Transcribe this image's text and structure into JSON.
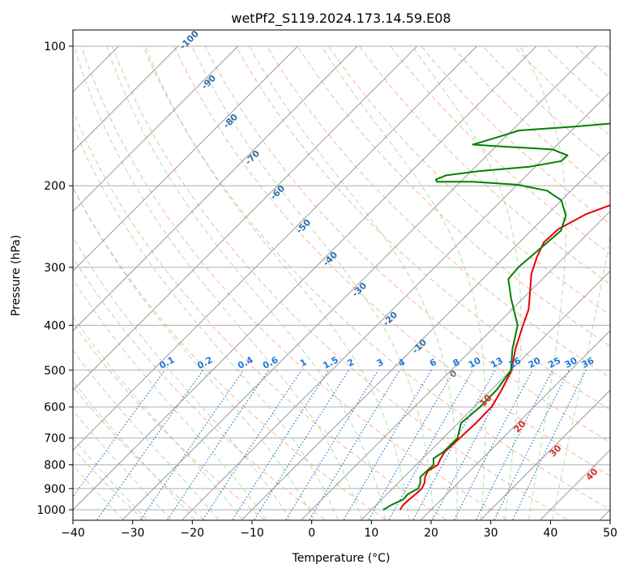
{
  "chart_data": {
    "type": "line",
    "title": "wetPf2_S119.2024.173.14.59.E08",
    "xlabel": "Temperature (°C)",
    "ylabel": "Pressure (hPa)",
    "xlim": [
      -40,
      50
    ],
    "ylim": [
      1050,
      100
    ],
    "y_scale": "log",
    "x_ticks": [
      -40,
      -30,
      -20,
      -10,
      0,
      10,
      20,
      30,
      40,
      50
    ],
    "y_ticks": [
      100,
      200,
      300,
      400,
      500,
      600,
      700,
      800,
      900,
      1000
    ],
    "grid": true,
    "colors": {
      "temperature": "#e8000b",
      "dewpoint": "#008000",
      "dry_adiabat": "#f4a582",
      "moist_adiabat": "#8fce8f",
      "mixing_ratio": "#1f77d8",
      "isotherm": "#808080"
    },
    "series": [
      {
        "name": "",
        "role": "temperature",
        "points": [
          [
            14.8,
            1000
          ],
          [
            14.5,
            975
          ],
          [
            14.6,
            950
          ],
          [
            14.8,
            925
          ],
          [
            14.9,
            900
          ],
          [
            14.4,
            875
          ],
          [
            13.5,
            850
          ],
          [
            13.0,
            825
          ],
          [
            13.6,
            800
          ],
          [
            13.0,
            775
          ],
          [
            12.6,
            750
          ],
          [
            12.8,
            700
          ],
          [
            13.0,
            650
          ],
          [
            12.9,
            600
          ],
          [
            11.7,
            550
          ],
          [
            10.1,
            500
          ],
          [
            7.2,
            450
          ],
          [
            4.5,
            400
          ],
          [
            2.8,
            370
          ],
          [
            0.2,
            340
          ],
          [
            -2.7,
            310
          ],
          [
            -4.6,
            285
          ],
          [
            -5.9,
            265
          ],
          [
            -5.7,
            248
          ],
          [
            -3.5,
            230
          ],
          [
            0.4,
            215
          ],
          [
            5.0,
            200
          ],
          [
            8.0,
            185
          ],
          [
            9.6,
            170
          ],
          [
            11.3,
            155
          ],
          [
            13.5,
            145
          ],
          [
            15.5,
            133
          ],
          [
            17.5,
            120
          ],
          [
            18.5,
            110
          ],
          [
            19.6,
            104
          ],
          [
            20.0,
            100
          ]
        ]
      },
      {
        "name": "",
        "role": "dewpoint",
        "points": [
          [
            12.0,
            1000
          ],
          [
            12.6,
            975
          ],
          [
            13.6,
            950
          ],
          [
            13.5,
            925
          ],
          [
            14.3,
            900
          ],
          [
            13.7,
            875
          ],
          [
            12.7,
            850
          ],
          [
            12.8,
            825
          ],
          [
            12.9,
            800
          ],
          [
            11.8,
            775
          ],
          [
            12.4,
            750
          ],
          [
            12.4,
            700
          ],
          [
            10.5,
            650
          ],
          [
            11.0,
            600
          ],
          [
            10.9,
            550
          ],
          [
            10.0,
            500
          ],
          [
            6.7,
            450
          ],
          [
            3.6,
            400
          ],
          [
            -2.0,
            350
          ],
          [
            -5.7,
            318
          ],
          [
            -6.0,
            300
          ],
          [
            -5.4,
            270
          ],
          [
            -5.0,
            250
          ],
          [
            -6.7,
            232
          ],
          [
            -10.0,
            215
          ],
          [
            -14.0,
            205
          ],
          [
            -20.0,
            199
          ],
          [
            -28.0,
            196
          ],
          [
            -34.0,
            196
          ],
          [
            -34.5,
            194
          ],
          [
            -33.5,
            190
          ],
          [
            -28.8,
            186
          ],
          [
            -21.0,
            182
          ],
          [
            -16.6,
            177
          ],
          [
            -16.5,
            172
          ],
          [
            -20.0,
            167
          ],
          [
            -31.0,
            164
          ],
          [
            -34.2,
            163
          ],
          [
            -31.2,
            157
          ],
          [
            -28.8,
            152
          ],
          [
            -20.0,
            149
          ],
          [
            -10.0,
            145
          ],
          [
            -6.7,
            140
          ],
          [
            -6.0,
            132
          ],
          [
            -5.0,
            122
          ],
          [
            -2.0,
            113
          ],
          [
            0.0,
            106
          ],
          [
            0.8,
            100
          ]
        ]
      }
    ],
    "dry_adiabat_labels": [
      "-100",
      "-90",
      "-80",
      "-70",
      "-60",
      "-50",
      "-40",
      "-30",
      "-20",
      "-10",
      "0",
      "10",
      "20",
      "30",
      "40"
    ],
    "mixing_ratio_labels": [
      "0.1",
      "0.2",
      "0.4",
      "0.6",
      "1",
      "1.5",
      "2",
      "3",
      "4",
      "6",
      "8",
      "10",
      "13",
      "16",
      "20",
      "25",
      "30",
      "36"
    ],
    "mixing_ratio_values": [
      0.1,
      0.2,
      0.4,
      0.6,
      1,
      1.5,
      2,
      3,
      4,
      6,
      8,
      10,
      13,
      16,
      20,
      25,
      30,
      36
    ]
  }
}
